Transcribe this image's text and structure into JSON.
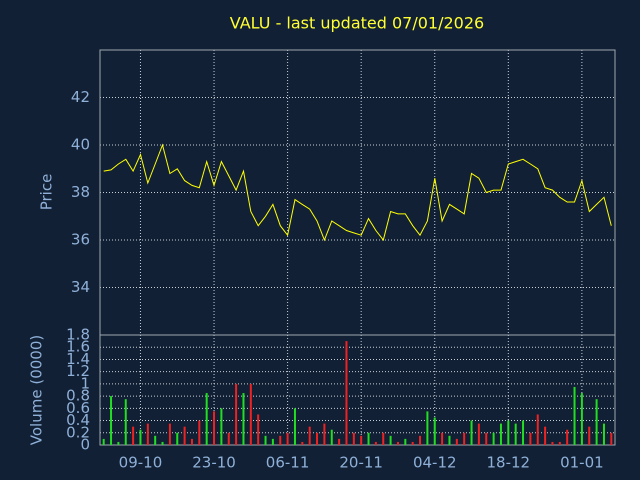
{
  "chart_data": [
    {
      "type": "line",
      "title": "VALU - last updated 07/01/2026",
      "ylabel": "Price",
      "color": "#ffff00",
      "values": [
        38.9,
        38.95,
        39.2,
        39.4,
        38.9,
        39.6,
        38.4,
        39.2,
        40.0,
        38.8,
        39.0,
        38.5,
        38.3,
        38.2,
        39.3,
        38.3,
        39.3,
        38.7,
        38.1,
        38.9,
        37.2,
        36.6,
        37.0,
        37.5,
        36.6,
        36.2,
        37.7,
        37.5,
        37.3,
        36.8,
        36.0,
        36.8,
        36.6,
        36.4,
        36.3,
        36.2,
        36.9,
        36.4,
        36.0,
        37.2,
        37.1,
        37.1,
        36.6,
        36.2,
        36.8,
        38.6,
        36.8,
        37.5,
        37.3,
        37.1,
        38.8,
        38.6,
        38.0,
        38.1,
        38.1,
        39.2,
        39.3,
        39.4,
        39.2,
        39.0,
        38.2,
        38.1,
        37.8,
        37.6,
        37.6,
        38.5,
        37.2,
        37.5,
        37.8,
        36.6
      ],
      "ylim": [
        32,
        44
      ],
      "yticks": [
        34,
        36,
        38,
        40,
        42
      ],
      "grid": true
    },
    {
      "type": "bar",
      "ylabel": "Volume (0000)",
      "up_color": "#22dd22",
      "down_color": "#ee2222",
      "categories": [
        null,
        null,
        null,
        null,
        null,
        "09-10",
        null,
        null,
        null,
        null,
        null,
        null,
        null,
        null,
        null,
        "23-10",
        null,
        null,
        null,
        null,
        null,
        null,
        null,
        null,
        null,
        "06-11",
        null,
        null,
        null,
        null,
        null,
        null,
        null,
        null,
        null,
        "20-11",
        null,
        null,
        null,
        null,
        null,
        null,
        null,
        null,
        null,
        "04-12",
        null,
        null,
        null,
        null,
        null,
        null,
        null,
        null,
        null,
        "18-12",
        null,
        null,
        null,
        null,
        null,
        null,
        null,
        null,
        null,
        "01-01",
        null,
        null,
        null,
        null
      ],
      "values": [
        0.1,
        0.8,
        0.05,
        0.75,
        0.3,
        0.25,
        0.35,
        0.15,
        0.05,
        0.35,
        0.2,
        0.3,
        0.1,
        0.4,
        0.85,
        0.55,
        0.6,
        0.2,
        1.0,
        0.85,
        1.0,
        0.5,
        0.15,
        0.1,
        0.15,
        0.2,
        0.6,
        0.05,
        0.3,
        0.2,
        0.35,
        0.25,
        0.1,
        1.7,
        0.2,
        0.15,
        0.2,
        0.05,
        0.2,
        0.15,
        0.05,
        0.1,
        0.05,
        0.15,
        0.55,
        0.45,
        0.2,
        0.15,
        0.1,
        0.2,
        0.4,
        0.35,
        0.2,
        0.2,
        0.35,
        0.4,
        0.35,
        0.4,
        0.2,
        0.5,
        0.3,
        0.05,
        0.05,
        0.25,
        0.95,
        0.85,
        0.3,
        0.75,
        0.35,
        0.2
      ],
      "ylim": [
        0,
        1.8
      ],
      "yticks": [
        0,
        0.2,
        0.4,
        0.6,
        0.8,
        1,
        1.2,
        1.4,
        1.6,
        1.8
      ],
      "grid": true
    }
  ]
}
